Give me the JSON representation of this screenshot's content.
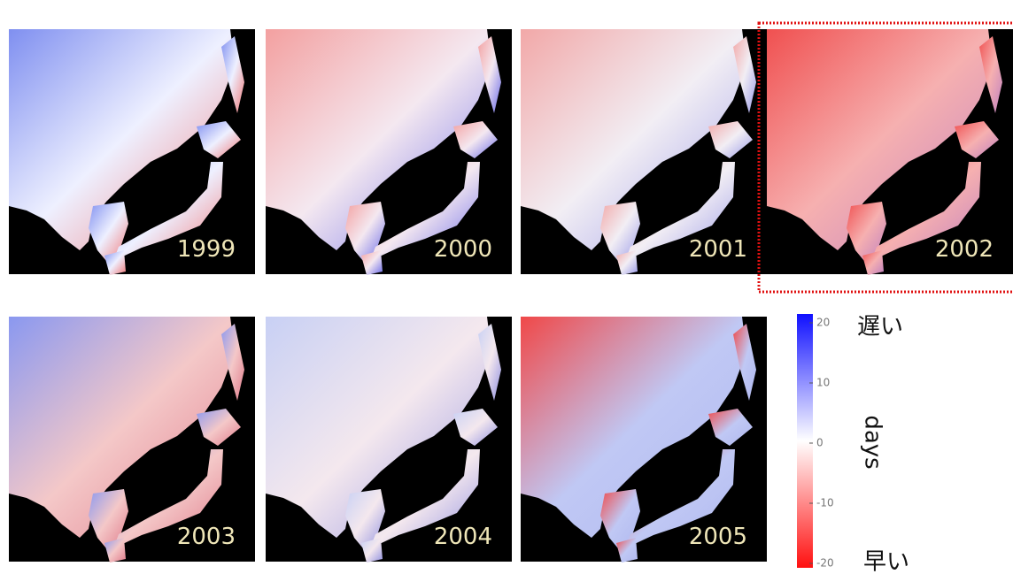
{
  "panels": [
    {
      "year": "1999"
    },
    {
      "year": "2000"
    },
    {
      "year": "2001"
    },
    {
      "year": "2002",
      "highlighted": true
    },
    {
      "year": "2003"
    },
    {
      "year": "2004"
    },
    {
      "year": "2005"
    }
  ],
  "colorbar": {
    "label": "days",
    "late_label": "遅い",
    "early_label": "早い",
    "lim": [
      -20,
      20
    ],
    "ticks": [
      20,
      10,
      0,
      -10,
      -20
    ]
  }
}
